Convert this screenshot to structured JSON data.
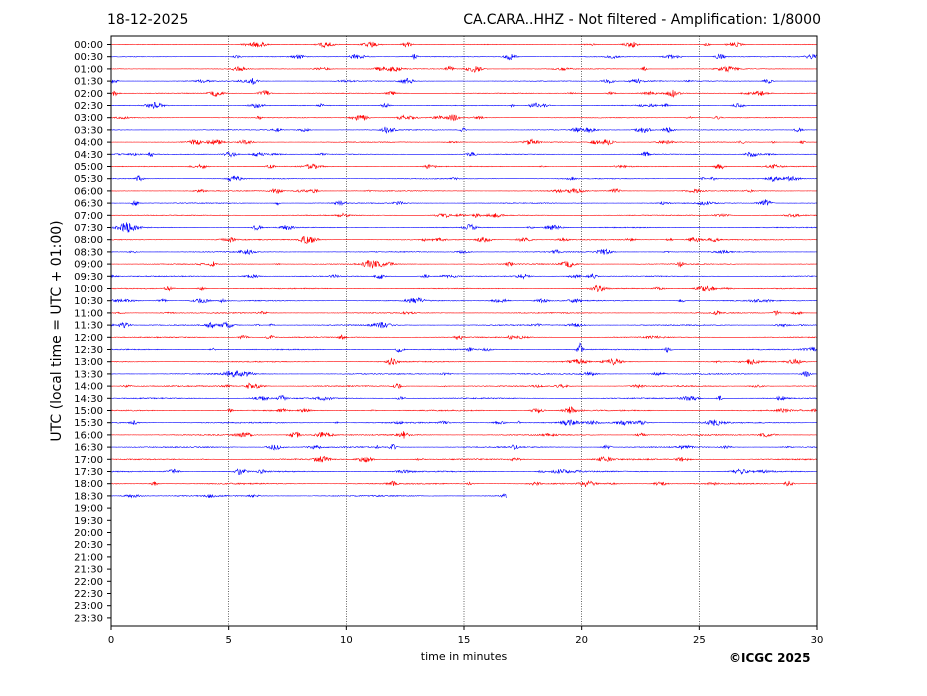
{
  "header": {
    "date": "18-12-2025",
    "title": "CA.CARA..HHZ - Not filtered - Amplification: 1/8000"
  },
  "footer": {
    "copyright": "©ICGC 2025"
  },
  "chart_data": {
    "type": "line",
    "subtype": "helicorder",
    "xlabel": "time in minutes",
    "ylabel": "UTC (local time = UTC + 01:00)",
    "xlim": [
      0,
      30
    ],
    "xticks": [
      0,
      5,
      10,
      15,
      20,
      25,
      30
    ],
    "vertical_grid": "dotted at each x tick",
    "row_labels": [
      "00:00",
      "00:30",
      "01:00",
      "01:30",
      "02:00",
      "02:30",
      "03:00",
      "03:30",
      "04:00",
      "04:30",
      "05:00",
      "05:30",
      "06:00",
      "06:30",
      "07:00",
      "07:30",
      "08:00",
      "08:30",
      "09:00",
      "09:30",
      "10:00",
      "10:30",
      "11:00",
      "11:30",
      "12:00",
      "12:30",
      "13:00",
      "13:30",
      "14:00",
      "14:30",
      "15:00",
      "15:30",
      "16:00",
      "16:30",
      "17:00",
      "17:30",
      "18:00",
      "18:30",
      "19:00",
      "19:30",
      "20:00",
      "20:30",
      "21:00",
      "21:30",
      "22:00",
      "22:30",
      "23:00",
      "23:30"
    ],
    "row_colors": [
      "#ff0000",
      "#0000ff"
    ],
    "recorded_rows": 38,
    "last_row_end_minutes": 16.8,
    "events": [
      {
        "row": "12:30",
        "minute": 19.9,
        "relative_amplitude": 1.0
      },
      {
        "row": "00:30",
        "minute": 12.9,
        "relative_amplitude": 0.4
      }
    ]
  }
}
